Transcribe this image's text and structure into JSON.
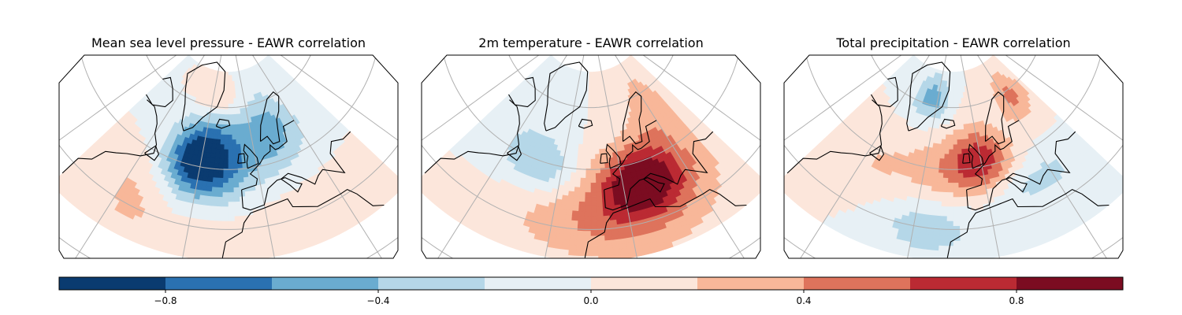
{
  "chart_data": {
    "type": "heatmap",
    "panels": [
      {
        "title": "Mean sea level pressure - EAWR correlation",
        "field_blobs": [
          {
            "lon": -30,
            "lat": 52,
            "amp": -0.95,
            "slon": 14,
            "slat": 9
          },
          {
            "lon": -5,
            "lat": 57,
            "amp": -0.35,
            "slon": 22,
            "slat": 10
          },
          {
            "lon": 15,
            "lat": 62,
            "amp": -0.3,
            "slon": 12,
            "slat": 8
          },
          {
            "lon": -25,
            "lat": 72,
            "amp": 0.28,
            "slon": 14,
            "slat": 4
          },
          {
            "lon": -55,
            "lat": 38,
            "amp": 0.22,
            "slon": 10,
            "slat": 10
          },
          {
            "lon": -40,
            "lat": 25,
            "amp": 0.12,
            "slon": 20,
            "slat": 8
          },
          {
            "lon": 20,
            "lat": 30,
            "amp": 0.12,
            "slon": 25,
            "slat": 8
          }
        ]
      },
      {
        "title": "2m temperature - EAWR correlation",
        "field_blobs": [
          {
            "lon": 10,
            "lat": 44,
            "amp": 0.78,
            "slon": 14,
            "slat": 8
          },
          {
            "lon": 5,
            "lat": 38,
            "amp": 0.35,
            "slon": 28,
            "slat": 14
          },
          {
            "lon": -20,
            "lat": 32,
            "amp": 0.18,
            "slon": 25,
            "slat": 8
          },
          {
            "lon": -40,
            "lat": 48,
            "amp": -0.32,
            "slon": 12,
            "slat": 6
          },
          {
            "lon": -50,
            "lat": 55,
            "amp": -0.18,
            "slon": 22,
            "slat": 10
          },
          {
            "lon": 30,
            "lat": 65,
            "amp": 0.3,
            "slon": 12,
            "slat": 10
          }
        ]
      },
      {
        "title": "Total precipitation - EAWR correlation",
        "field_blobs": [
          {
            "lon": 0,
            "lat": 52,
            "amp": 0.62,
            "slon": 12,
            "slat": 8
          },
          {
            "lon": -20,
            "lat": 50,
            "amp": 0.3,
            "slon": 20,
            "slat": 8
          },
          {
            "lon": 35,
            "lat": 68,
            "amp": 0.45,
            "slon": 10,
            "slat": 6
          },
          {
            "lon": -35,
            "lat": 72,
            "amp": -0.5,
            "slon": 12,
            "slat": 5
          },
          {
            "lon": -25,
            "lat": 30,
            "amp": -0.35,
            "slon": 12,
            "slat": 6
          },
          {
            "lon": 20,
            "lat": 40,
            "amp": -0.3,
            "slon": 18,
            "slat": 6
          },
          {
            "lon": -55,
            "lat": 45,
            "amp": 0.15,
            "slon": 10,
            "slat": 8
          }
        ]
      }
    ],
    "colorbar": {
      "levels": [
        -1.0,
        -0.8,
        -0.6,
        -0.4,
        -0.2,
        0.0,
        0.2,
        0.4,
        0.6,
        0.8,
        1.0
      ],
      "colors": [
        "#0a3b70",
        "#2a71b1",
        "#6aacd0",
        "#b5d7e8",
        "#e7f0f5",
        "#fce6db",
        "#f8b799",
        "#de735c",
        "#bb2a33",
        "#7b0c21"
      ],
      "ticks": [
        -0.8,
        -0.4,
        0.0,
        0.4,
        0.8
      ],
      "tick_labels": [
        "−0.8",
        "−0.4",
        "0.0",
        "0.4",
        "0.8"
      ]
    },
    "map": {
      "projection": "lambert-conformal",
      "lon_range": [
        -80,
        50
      ],
      "lat_range": [
        20,
        80
      ],
      "gridlines": true
    }
  }
}
